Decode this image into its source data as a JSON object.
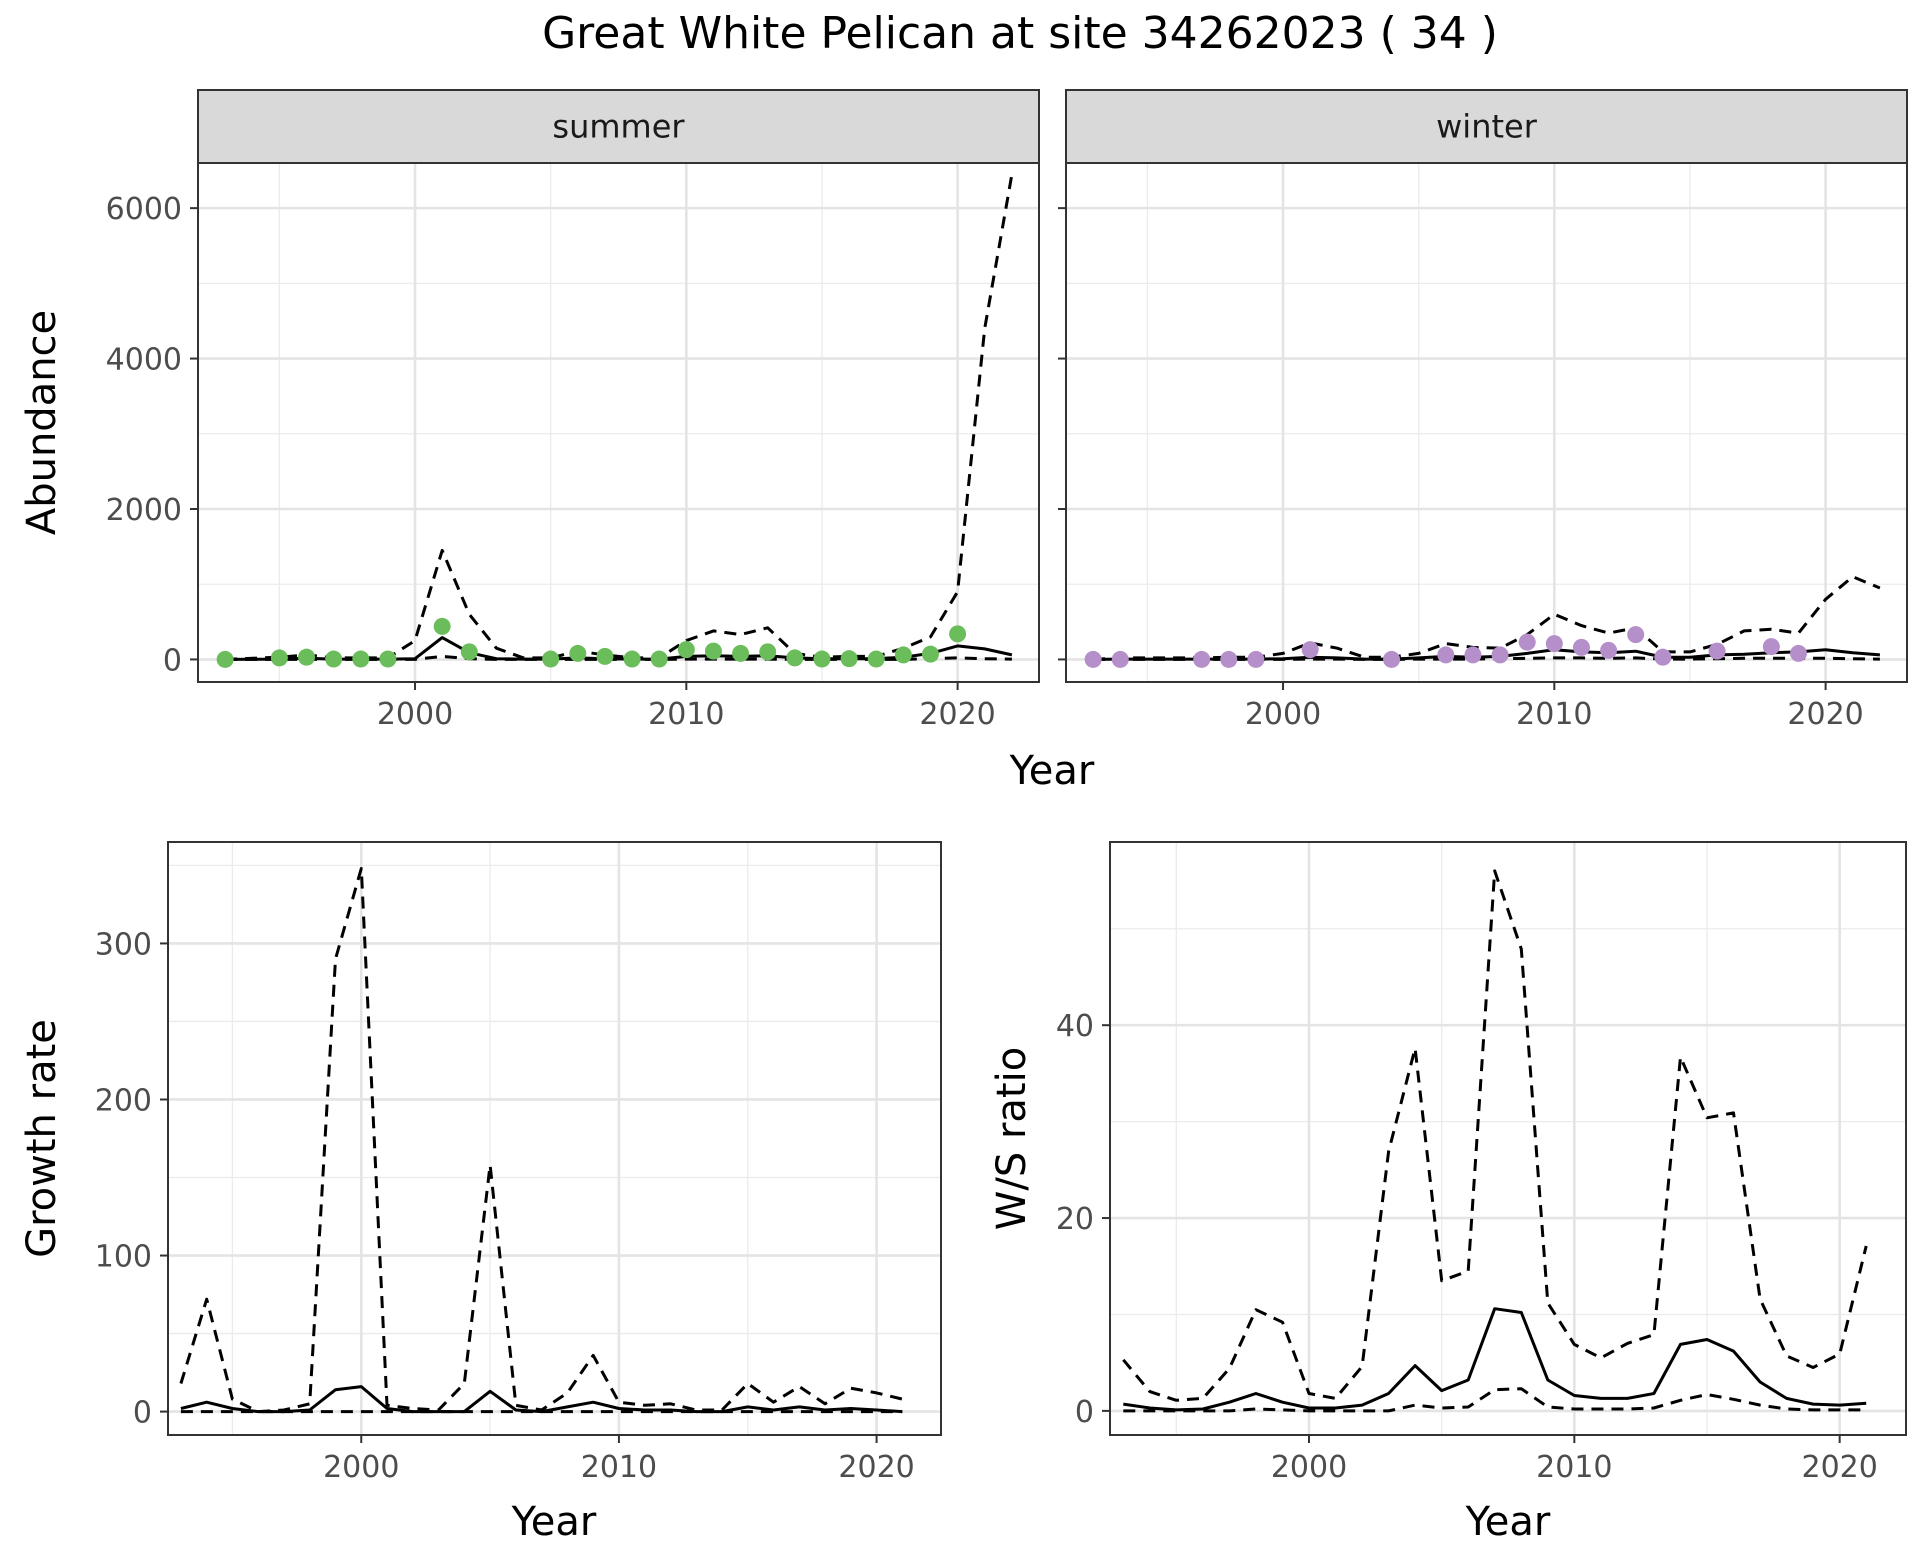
{
  "figure": {
    "title": "Great White Pelican at site 34262023 ( 34 )"
  },
  "chart_data": [
    {
      "type": "line",
      "panel": "summer",
      "facet_label": "summer",
      "xlabel": "Year",
      "ylabel": "Abundance",
      "xlim": [
        1992,
        2023
      ],
      "ylim": [
        -300,
        6600
      ],
      "x_ticks": [
        2000,
        2010,
        2020
      ],
      "y_ticks": [
        0,
        2000,
        4000,
        6000
      ],
      "grid": true,
      "point_color": "#6abd5a",
      "series": [
        {
          "style": "solid",
          "x": [
            1993,
            1995,
            1996,
            1997,
            1998,
            1999,
            2000,
            2001,
            2002,
            2003,
            2004,
            2005,
            2006,
            2007,
            2008,
            2009,
            2010,
            2011,
            2012,
            2013,
            2014,
            2015,
            2016,
            2017,
            2018,
            2019,
            2020,
            2021,
            2022
          ],
          "y": [
            0,
            5,
            15,
            5,
            5,
            5,
            10,
            290,
            90,
            10,
            5,
            5,
            20,
            10,
            5,
            5,
            40,
            50,
            40,
            50,
            20,
            10,
            10,
            10,
            30,
            80,
            180,
            140,
            60
          ]
        },
        {
          "style": "dashed",
          "x": [
            1993,
            1995,
            1996,
            1997,
            1998,
            1999,
            2000,
            2001,
            2002,
            2003,
            2004,
            2005,
            2006,
            2007,
            2008,
            2009,
            2010,
            2011,
            2012,
            2013,
            2014,
            2015,
            2016,
            2017,
            2018,
            2019,
            2020,
            2021,
            2022
          ],
          "y": [
            0,
            30,
            60,
            20,
            20,
            20,
            250,
            1450,
            600,
            150,
            20,
            20,
            110,
            60,
            20,
            20,
            250,
            380,
            330,
            420,
            80,
            30,
            40,
            40,
            150,
            300,
            900,
            4400,
            6450
          ]
        },
        {
          "style": "dashed",
          "x": [
            1993,
            1995,
            1996,
            1997,
            1998,
            1999,
            2000,
            2001,
            2002,
            2003,
            2004,
            2005,
            2006,
            2007,
            2008,
            2009,
            2010,
            2011,
            2012,
            2013,
            2014,
            2015,
            2016,
            2017,
            2018,
            2019,
            2020,
            2021,
            2022
          ],
          "y": [
            0,
            0,
            0,
            0,
            0,
            0,
            0,
            40,
            10,
            0,
            0,
            0,
            0,
            0,
            0,
            0,
            5,
            5,
            5,
            5,
            0,
            0,
            0,
            0,
            0,
            10,
            20,
            10,
            5
          ]
        }
      ],
      "points": {
        "x": [
          1993,
          1995,
          1996,
          1997,
          1998,
          1999,
          2001,
          2002,
          2005,
          2006,
          2007,
          2008,
          2009,
          2010,
          2011,
          2012,
          2013,
          2014,
          2015,
          2016,
          2017,
          2018,
          2019,
          2020
        ],
        "y": [
          0,
          20,
          30,
          5,
          5,
          5,
          440,
          100,
          5,
          80,
          40,
          5,
          5,
          130,
          110,
          80,
          100,
          20,
          5,
          10,
          5,
          60,
          70,
          340
        ]
      }
    },
    {
      "type": "line",
      "panel": "winter",
      "facet_label": "winter",
      "xlabel": "Year",
      "ylabel": "Abundance",
      "xlim": [
        1992,
        2023
      ],
      "ylim": [
        -300,
        6600
      ],
      "x_ticks": [
        2000,
        2010,
        2020
      ],
      "y_ticks": [
        0,
        2000,
        4000,
        6000
      ],
      "grid": true,
      "point_color": "#b48fc9",
      "series": [
        {
          "style": "solid",
          "x": [
            1993,
            1994,
            1997,
            1998,
            1999,
            2000,
            2001,
            2002,
            2003,
            2004,
            2005,
            2006,
            2007,
            2008,
            2009,
            2010,
            2011,
            2012,
            2013,
            2014,
            2015,
            2016,
            2017,
            2018,
            2019,
            2020,
            2021,
            2022
          ],
          "y": [
            0,
            5,
            5,
            5,
            5,
            10,
            30,
            20,
            5,
            5,
            20,
            40,
            30,
            40,
            80,
            130,
            100,
            90,
            110,
            30,
            30,
            60,
            70,
            90,
            100,
            130,
            90,
            60
          ]
        },
        {
          "style": "dashed",
          "x": [
            1993,
            1994,
            1997,
            1998,
            1999,
            2000,
            2001,
            2002,
            2003,
            2004,
            2005,
            2006,
            2007,
            2008,
            2009,
            2010,
            2011,
            2012,
            2013,
            2014,
            2015,
            2016,
            2017,
            2018,
            2019,
            2020,
            2021,
            2022
          ],
          "y": [
            0,
            20,
            20,
            30,
            30,
            80,
            220,
            150,
            30,
            30,
            80,
            210,
            160,
            150,
            330,
            600,
            450,
            350,
            420,
            100,
            100,
            200,
            380,
            400,
            350,
            800,
            1100,
            950
          ]
        },
        {
          "style": "dashed",
          "x": [
            1993,
            1994,
            1997,
            1998,
            1999,
            2000,
            2001,
            2002,
            2003,
            2004,
            2005,
            2006,
            2007,
            2008,
            2009,
            2010,
            2011,
            2012,
            2013,
            2014,
            2015,
            2016,
            2017,
            2018,
            2019,
            2020,
            2021,
            2022
          ],
          "y": [
            0,
            0,
            0,
            0,
            0,
            0,
            5,
            5,
            0,
            0,
            5,
            5,
            5,
            10,
            15,
            20,
            20,
            15,
            20,
            5,
            5,
            10,
            15,
            15,
            15,
            15,
            10,
            5
          ]
        }
      ],
      "points": {
        "x": [
          1993,
          1994,
          1997,
          1998,
          1999,
          2001,
          2004,
          2006,
          2007,
          2008,
          2009,
          2010,
          2011,
          2012,
          2013,
          2014,
          2016,
          2018,
          2019
        ],
        "y": [
          0,
          0,
          0,
          0,
          0,
          130,
          0,
          60,
          60,
          60,
          230,
          210,
          160,
          120,
          330,
          30,
          110,
          170,
          80
        ]
      }
    },
    {
      "type": "line",
      "panel": "growth",
      "xlabel": "Year",
      "ylabel": "Growth rate",
      "xlim": [
        1992.5,
        2022.5
      ],
      "ylim": [
        -15,
        365
      ],
      "x_ticks": [
        2000,
        2010,
        2020
      ],
      "y_ticks": [
        0,
        100,
        200,
        300
      ],
      "grid": true,
      "series": [
        {
          "style": "solid",
          "x": [
            1993,
            1994,
            1995,
            1996,
            1997,
            1998,
            1999,
            2000,
            2001,
            2002,
            2003,
            2004,
            2005,
            2006,
            2007,
            2008,
            2009,
            2010,
            2011,
            2012,
            2013,
            2014,
            2015,
            2016,
            2017,
            2018,
            2019,
            2020,
            2021
          ],
          "y": [
            2,
            6,
            2,
            0,
            0,
            1,
            14,
            16,
            2,
            0,
            0,
            0,
            13,
            1,
            0,
            3,
            6,
            2,
            1,
            1,
            0,
            0,
            3,
            1,
            3,
            1,
            2,
            1,
            0
          ]
        },
        {
          "style": "dashed",
          "x": [
            1993,
            1994,
            1995,
            1996,
            1997,
            1998,
            1999,
            2000,
            2001,
            2002,
            2003,
            2004,
            2005,
            2006,
            2007,
            2008,
            2009,
            2010,
            2011,
            2012,
            2013,
            2014,
            2015,
            2016,
            2017,
            2018,
            2019,
            2020,
            2021
          ],
          "y": [
            18,
            72,
            8,
            0,
            1,
            5,
            290,
            348,
            4,
            2,
            1,
            18,
            158,
            4,
            1,
            12,
            36,
            6,
            4,
            5,
            1,
            1,
            18,
            6,
            16,
            5,
            15,
            12,
            8
          ]
        },
        {
          "style": "dashed",
          "x": [
            1993,
            1994,
            1995,
            1996,
            1997,
            1998,
            1999,
            2000,
            2001,
            2002,
            2003,
            2004,
            2005,
            2006,
            2007,
            2008,
            2009,
            2010,
            2011,
            2012,
            2013,
            2014,
            2015,
            2016,
            2017,
            2018,
            2019,
            2020,
            2021
          ],
          "y": [
            0,
            0,
            0,
            0,
            0,
            0,
            0,
            0,
            0,
            0,
            0,
            0,
            0,
            0,
            0,
            0,
            0,
            0,
            0,
            0,
            0,
            0,
            0,
            0,
            0,
            0,
            0,
            0,
            0
          ]
        }
      ]
    },
    {
      "type": "line",
      "panel": "ratio",
      "xlabel": "Year",
      "ylabel": "W/S ratio",
      "xlim": [
        1992.5,
        2022.5
      ],
      "ylim": [
        -2.5,
        59
      ],
      "x_ticks": [
        2000,
        2010,
        2020
      ],
      "y_ticks": [
        0,
        20,
        40
      ],
      "grid": true,
      "series": [
        {
          "style": "solid",
          "x": [
            1993,
            1994,
            1995,
            1996,
            1997,
            1998,
            1999,
            2000,
            2001,
            2002,
            2003,
            2004,
            2005,
            2006,
            2007,
            2008,
            2009,
            2010,
            2011,
            2012,
            2013,
            2014,
            2015,
            2016,
            2017,
            2018,
            2019,
            2020,
            2021
          ],
          "y": [
            0.7,
            0.3,
            0.1,
            0.2,
            0.9,
            1.8,
            0.9,
            0.3,
            0.3,
            0.6,
            1.8,
            4.7,
            2.1,
            3.2,
            10.6,
            10.2,
            3.2,
            1.6,
            1.3,
            1.3,
            1.8,
            6.9,
            7.4,
            6.2,
            3.0,
            1.3,
            0.7,
            0.6,
            0.8
          ]
        },
        {
          "style": "dashed",
          "x": [
            1993,
            1994,
            1995,
            1996,
            1997,
            1998,
            1999,
            2000,
            2001,
            2002,
            2003,
            2004,
            2005,
            2006,
            2007,
            2008,
            2009,
            2010,
            2011,
            2012,
            2013,
            2014,
            2015,
            2016,
            2017,
            2018,
            2019,
            2020,
            2021
          ],
          "y": [
            5.3,
            2.0,
            1.1,
            1.3,
            4.4,
            10.5,
            9.2,
            1.8,
            1.3,
            4.6,
            26.9,
            37.6,
            13.5,
            14.5,
            56.0,
            47.9,
            11.2,
            6.9,
            5.5,
            7.0,
            7.9,
            36.7,
            30.4,
            30.9,
            11.6,
            5.7,
            4.5,
            5.9,
            17.1
          ]
        },
        {
          "style": "dashed",
          "x": [
            1993,
            1994,
            1995,
            1996,
            1997,
            1998,
            1999,
            2000,
            2001,
            2002,
            2003,
            2004,
            2005,
            2006,
            2007,
            2008,
            2009,
            2010,
            2011,
            2012,
            2013,
            2014,
            2015,
            2016,
            2017,
            2018,
            2019,
            2020,
            2021
          ],
          "y": [
            0,
            0,
            0,
            0,
            0,
            0.2,
            0.1,
            0,
            0,
            0,
            0,
            0.6,
            0.3,
            0.4,
            2.2,
            2.3,
            0.4,
            0.2,
            0.2,
            0.2,
            0.3,
            1.1,
            1.7,
            1.2,
            0.6,
            0.2,
            0.1,
            0.1,
            0.1
          ]
        }
      ]
    }
  ]
}
